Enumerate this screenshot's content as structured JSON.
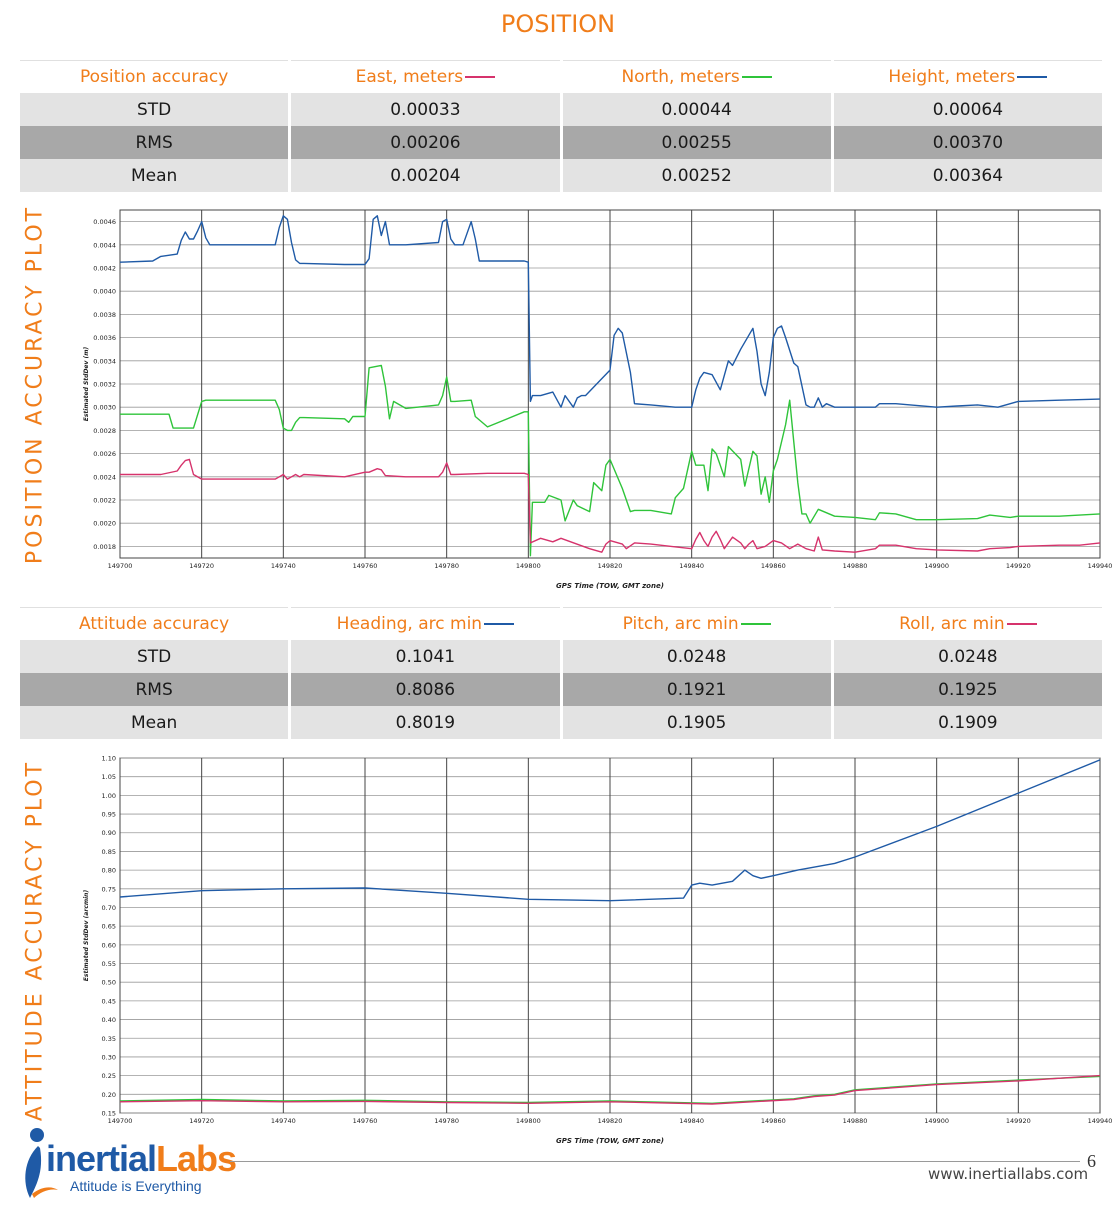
{
  "page": {
    "title": "POSITION",
    "position_plot_label": "POSITION ACCURACY PLOT",
    "attitude_plot_label": "ATTITUDE ACCURACY PLOT",
    "page_number": "6",
    "website": "www.inertiallabs.com"
  },
  "logo": {
    "brand_main": "inertial",
    "brand_accent": "Labs",
    "tagline": "Attitude is Everything"
  },
  "colors": {
    "accent": "#f07d1a",
    "east": "#d6336c",
    "north": "#2fc43a",
    "height": "#1f5aa6",
    "heading": "#1f5aa6",
    "pitch": "#2fc43a",
    "roll": "#d6336c"
  },
  "position_table": {
    "headers": [
      "Position accuracy",
      "East, meters",
      "North, meters",
      "Height, meters"
    ],
    "rows": [
      {
        "label": "STD",
        "values": [
          "0.00033",
          "0.00044",
          "0.00064"
        ]
      },
      {
        "label": "RMS",
        "values": [
          "0.00206",
          "0.00255",
          "0.00370"
        ]
      },
      {
        "label": "Mean",
        "values": [
          "0.00204",
          "0.00252",
          "0.00364"
        ]
      }
    ]
  },
  "attitude_table": {
    "headers": [
      "Attitude accuracy",
      "Heading, arc min",
      "Pitch, arc min",
      "Roll, arc min"
    ],
    "rows": [
      {
        "label": "STD",
        "values": [
          "0.1041",
          "0.0248",
          "0.0248"
        ]
      },
      {
        "label": "RMS",
        "values": [
          "0.8086",
          "0.1921",
          "0.1925"
        ]
      },
      {
        "label": "Mean",
        "values": [
          "0.8019",
          "0.1905",
          "0.1909"
        ]
      }
    ]
  },
  "chart_data": [
    {
      "type": "line",
      "xlabel": "GPS Time (TOW, GMT zone)",
      "ylabel": "Estimated StdDev (m)",
      "xlim": [
        149700,
        149940
      ],
      "ylim": [
        0.0017,
        0.0047
      ],
      "grid": true,
      "x_ticks": [
        "149700",
        "149720",
        "149740",
        "149760",
        "149780",
        "149800",
        "149820",
        "149840",
        "149860",
        "149880",
        "149900",
        "149920",
        "149940"
      ],
      "y_ticks": [
        "0.0018",
        "0.0020",
        "0.0022",
        "0.0024",
        "0.0026",
        "0.0028",
        "0.0030",
        "0.0032",
        "0.0034",
        "0.0036",
        "0.0038",
        "0.0040",
        "0.0042",
        "0.0044",
        "0.0046"
      ],
      "series": [
        {
          "key": "height",
          "x": [
            149700,
            149708,
            149710,
            149714,
            149715,
            149716,
            149717,
            149718,
            149719,
            149720,
            149721,
            149722,
            149738,
            149739,
            149740,
            149741,
            149742,
            149743,
            149744,
            149745,
            149755,
            149760,
            149761,
            149762,
            149763,
            149764,
            149765,
            149766,
            149768,
            149770,
            149778,
            149779,
            149780,
            149781,
            149782,
            149784,
            149785,
            149786,
            149787,
            149788,
            149799,
            149800,
            149800.5,
            149801,
            149803,
            149806,
            149808,
            149809,
            149811,
            149812,
            149813,
            149814,
            149820,
            149821,
            149822,
            149823,
            149825,
            149826,
            149830,
            149836,
            149840,
            149841,
            149842,
            149843,
            149845,
            149847,
            149849,
            149850,
            149852,
            149855,
            149856,
            149857,
            149858,
            149859,
            149860,
            149861,
            149862,
            149863,
            149865,
            149866,
            149868,
            149869,
            149870,
            149871,
            149872,
            149873,
            149875,
            149880,
            149885,
            149886,
            149890,
            149900,
            149905,
            149910,
            149915,
            149918,
            149920,
            149930,
            149940
          ],
          "y": [
            0.00425,
            0.00426,
            0.0043,
            0.00432,
            0.00444,
            0.00451,
            0.00445,
            0.00445,
            0.00452,
            0.0046,
            0.00446,
            0.0044,
            0.0044,
            0.00455,
            0.00465,
            0.00462,
            0.00442,
            0.00427,
            0.00424,
            0.00424,
            0.00423,
            0.00423,
            0.00428,
            0.00462,
            0.00465,
            0.00448,
            0.0046,
            0.0044,
            0.0044,
            0.0044,
            0.00442,
            0.0046,
            0.00462,
            0.00445,
            0.0044,
            0.0044,
            0.0045,
            0.0046,
            0.00445,
            0.00426,
            0.00426,
            0.00425,
            0.00305,
            0.0031,
            0.0031,
            0.00313,
            0.003,
            0.0031,
            0.003,
            0.00308,
            0.0031,
            0.0031,
            0.00332,
            0.00362,
            0.00368,
            0.00364,
            0.0033,
            0.00303,
            0.00302,
            0.003,
            0.003,
            0.00315,
            0.00325,
            0.0033,
            0.00328,
            0.00315,
            0.0034,
            0.00336,
            0.0035,
            0.00368,
            0.00348,
            0.0032,
            0.0031,
            0.0033,
            0.0036,
            0.00368,
            0.0037,
            0.0036,
            0.00338,
            0.00335,
            0.00302,
            0.003,
            0.003,
            0.00308,
            0.003,
            0.00303,
            0.003,
            0.003,
            0.003,
            0.00303,
            0.00303,
            0.003,
            0.00301,
            0.00302,
            0.003,
            0.00303,
            0.00305,
            0.00306,
            0.00307
          ]
        },
        {
          "key": "north",
          "x": [
            149700,
            149712,
            149713,
            149718,
            149720,
            149721,
            149738,
            149739,
            149740,
            149741,
            149742,
            149743,
            149744,
            149745,
            149755,
            149756,
            149757,
            149760,
            149761,
            149764,
            149765,
            149766,
            149767,
            149770,
            149778,
            149779,
            149780,
            149781,
            149782,
            149786,
            149787,
            149790,
            149799,
            149800,
            149800.5,
            149801,
            149804,
            149805,
            149808,
            149809,
            149811,
            149812,
            149815,
            149816,
            149818,
            149819,
            149820,
            149823,
            149825,
            149826,
            149830,
            149835,
            149836,
            149838,
            149840,
            149841,
            149843,
            149844,
            149845,
            149846,
            149848,
            149849,
            149852,
            149853,
            149855,
            149856,
            149857,
            149858,
            149859,
            149860,
            149861,
            149863,
            149864,
            149865,
            149866,
            149867,
            149868,
            149869,
            149871,
            149875,
            149880,
            149885,
            149886,
            149890,
            149895,
            149900,
            149910,
            149913,
            149918,
            149920,
            149930,
            149940
          ],
          "y": [
            0.00294,
            0.00294,
            0.00282,
            0.00282,
            0.00305,
            0.00306,
            0.00306,
            0.00298,
            0.00282,
            0.0028,
            0.0028,
            0.00287,
            0.00291,
            0.00291,
            0.0029,
            0.00287,
            0.00292,
            0.00292,
            0.00334,
            0.00336,
            0.00318,
            0.0029,
            0.00305,
            0.00299,
            0.00302,
            0.0031,
            0.00326,
            0.00305,
            0.00305,
            0.00306,
            0.00292,
            0.00283,
            0.00296,
            0.00296,
            0.00172,
            0.00218,
            0.00218,
            0.00224,
            0.0022,
            0.00202,
            0.0022,
            0.00215,
            0.0021,
            0.00235,
            0.00228,
            0.0025,
            0.00255,
            0.0023,
            0.0021,
            0.00211,
            0.00211,
            0.00208,
            0.00222,
            0.0023,
            0.00262,
            0.0025,
            0.0025,
            0.00228,
            0.00264,
            0.0026,
            0.0024,
            0.00266,
            0.00255,
            0.00232,
            0.00262,
            0.00258,
            0.00225,
            0.0024,
            0.00218,
            0.00245,
            0.00255,
            0.00285,
            0.00306,
            0.0027,
            0.00235,
            0.00208,
            0.00208,
            0.002,
            0.00212,
            0.00206,
            0.00205,
            0.00203,
            0.00209,
            0.00208,
            0.00203,
            0.00203,
            0.00204,
            0.00207,
            0.00205,
            0.00206,
            0.00206,
            0.00208
          ]
        },
        {
          "key": "east",
          "x": [
            149700,
            149710,
            149714,
            149715,
            149716,
            149717,
            149718,
            149720,
            149738,
            149739,
            149740,
            149741,
            149742,
            149743,
            149744,
            149745,
            149755,
            149760,
            149761,
            149763,
            149764,
            149765,
            149770,
            149778,
            149779,
            149780,
            149781,
            149782,
            149790,
            149799,
            149800,
            149800.5,
            149803,
            149806,
            149808,
            149815,
            149818,
            149819,
            149820,
            149823,
            149824,
            149826,
            149830,
            149835,
            149840,
            149841,
            149842,
            149843,
            149844,
            149845,
            149846,
            149847,
            149848,
            149850,
            149852,
            149853,
            149854,
            149855,
            149856,
            149858,
            149860,
            149862,
            149864,
            149866,
            149868,
            149870,
            149871,
            149872,
            149875,
            149880,
            149885,
            149886,
            149890,
            149895,
            149900,
            149910,
            149913,
            149918,
            149920,
            149930,
            149935,
            149940
          ],
          "y": [
            0.00242,
            0.00242,
            0.00245,
            0.0025,
            0.00254,
            0.00255,
            0.00242,
            0.00238,
            0.00238,
            0.0024,
            0.00242,
            0.00238,
            0.0024,
            0.00242,
            0.0024,
            0.00242,
            0.0024,
            0.00244,
            0.00244,
            0.00247,
            0.00246,
            0.00241,
            0.0024,
            0.0024,
            0.00244,
            0.00252,
            0.00242,
            0.00242,
            0.00243,
            0.00243,
            0.00242,
            0.00183,
            0.00187,
            0.00184,
            0.00187,
            0.00178,
            0.00175,
            0.00182,
            0.00185,
            0.00182,
            0.00178,
            0.00183,
            0.00182,
            0.0018,
            0.00178,
            0.00186,
            0.00192,
            0.00185,
            0.0018,
            0.00188,
            0.00193,
            0.00186,
            0.00178,
            0.00188,
            0.00183,
            0.00178,
            0.00182,
            0.00185,
            0.00178,
            0.0018,
            0.00185,
            0.00183,
            0.00178,
            0.00182,
            0.00178,
            0.00176,
            0.00188,
            0.00177,
            0.00176,
            0.00175,
            0.00178,
            0.00181,
            0.00181,
            0.00178,
            0.00177,
            0.00176,
            0.00178,
            0.00179,
            0.0018,
            0.00181,
            0.00181,
            0.00183
          ]
        }
      ]
    },
    {
      "type": "line",
      "xlabel": "GPS Time (TOW, GMT zone)",
      "ylabel": "Estimated StdDev (arcmin)",
      "xlim": [
        149700,
        149940
      ],
      "ylim": [
        0.15,
        1.1
      ],
      "grid": true,
      "x_ticks": [
        "149700",
        "149720",
        "149740",
        "149760",
        "149780",
        "149800",
        "149820",
        "149840",
        "149860",
        "149880",
        "149900",
        "149920",
        "149940"
      ],
      "y_ticks": [
        "0.15",
        "0.20",
        "0.25",
        "0.30",
        "0.35",
        "0.40",
        "0.45",
        "0.50",
        "0.55",
        "0.60",
        "0.65",
        "0.70",
        "0.75",
        "0.80",
        "0.85",
        "0.90",
        "0.95",
        "1.00",
        "1.05",
        "1.10"
      ],
      "series": [
        {
          "key": "heading",
          "x": [
            149700,
            149720,
            149740,
            149760,
            149780,
            149800,
            149820,
            149838,
            149840,
            149842,
            149845,
            149850,
            149853,
            149855,
            149857,
            149860,
            149866,
            149875,
            149880,
            149900,
            149920,
            149940
          ],
          "y": [
            0.728,
            0.745,
            0.75,
            0.752,
            0.738,
            0.722,
            0.718,
            0.725,
            0.76,
            0.765,
            0.76,
            0.77,
            0.8,
            0.785,
            0.778,
            0.785,
            0.8,
            0.818,
            0.835,
            0.917,
            1.006,
            1.095
          ]
        },
        {
          "key": "pitch",
          "x": [
            149700,
            149720,
            149740,
            149760,
            149780,
            149800,
            149820,
            149845,
            149865,
            149870,
            149875,
            149880,
            149900,
            149920,
            149940
          ],
          "y": [
            0.182,
            0.186,
            0.182,
            0.184,
            0.18,
            0.178,
            0.182,
            0.176,
            0.188,
            0.196,
            0.2,
            0.212,
            0.228,
            0.238,
            0.248
          ]
        },
        {
          "key": "roll",
          "x": [
            149700,
            149720,
            149740,
            149760,
            149780,
            149800,
            149820,
            149845,
            149865,
            149870,
            149875,
            149880,
            149900,
            149920,
            149940
          ],
          "y": [
            0.18,
            0.183,
            0.18,
            0.181,
            0.178,
            0.176,
            0.18,
            0.174,
            0.186,
            0.194,
            0.198,
            0.21,
            0.226,
            0.236,
            0.25
          ]
        }
      ]
    }
  ]
}
